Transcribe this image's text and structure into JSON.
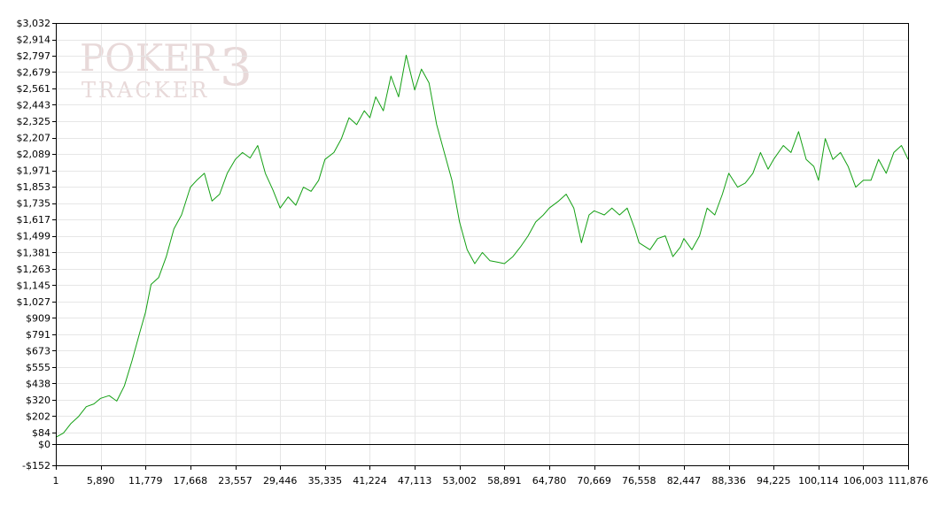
{
  "watermark": {
    "line1": "POKER",
    "line2": "TRACKER",
    "badge": "3"
  },
  "chart_data": {
    "type": "line",
    "title": "",
    "xlabel": "",
    "ylabel": "",
    "grid": true,
    "legend": "none",
    "colors": {
      "line": "#14a014",
      "grid": "#e6e6e6",
      "axis": "#000000",
      "zero": "#000000"
    },
    "xlim": [
      1,
      111876
    ],
    "ylim": [
      -152,
      3032
    ],
    "x_ticks": [
      1,
      5890,
      11779,
      17668,
      23557,
      29446,
      35335,
      41224,
      47113,
      53002,
      58891,
      64780,
      70669,
      76558,
      82447,
      88336,
      94225,
      100114,
      106003,
      111876
    ],
    "x_tick_labels": [
      "1",
      "5,890",
      "11,779",
      "17,668",
      "23,557",
      "29,446",
      "35,335",
      "41,224",
      "47,113",
      "53,002",
      "58,891",
      "64,780",
      "70,669",
      "76,558",
      "82,447",
      "88,336",
      "94,225",
      "100,114",
      "106,003",
      "111,876"
    ],
    "y_ticks": [
      -152,
      0,
      84,
      202,
      320,
      438,
      555,
      673,
      791,
      909,
      1027,
      1145,
      1263,
      1381,
      1499,
      1617,
      1735,
      1853,
      1971,
      2089,
      2207,
      2325,
      2443,
      2561,
      2679,
      2797,
      2914,
      3032
    ],
    "y_tick_labels": [
      "-$152",
      "$0",
      "$84",
      "$202",
      "$320",
      "$438",
      "$555",
      "$673",
      "$791",
      "$909",
      "$1,027",
      "$1,145",
      "$1,263",
      "$1,381",
      "$1,499",
      "$1,617",
      "$1,735",
      "$1,853",
      "$1,971",
      "$2,089",
      "$2,207",
      "$2,325",
      "$2,443",
      "$2,561",
      "$2,679",
      "$2,797",
      "$2,914",
      "$3,032"
    ],
    "series": [
      {
        "x": [
          1,
          1000,
          2000,
          3000,
          4000,
          5000,
          5890,
          7000,
          8000,
          9000,
          10000,
          11000,
          11779,
          12500,
          13500,
          14500,
          15500,
          16500,
          17668,
          18500,
          19500,
          20500,
          21500,
          22500,
          23557,
          24500,
          25500,
          26500,
          27500,
          28500,
          29446,
          30500,
          31500,
          32500,
          33500,
          34500,
          35335,
          36500,
          37500,
          38500,
          39500,
          40500,
          41224,
          42000,
          43000,
          44000,
          45000,
          46000,
          47113,
          48000,
          49000,
          50000,
          51000,
          52000,
          53002,
          54000,
          55000,
          56000,
          57000,
          58000,
          58891,
          60000,
          61000,
          62000,
          63000,
          64000,
          64780,
          66000,
          67000,
          68000,
          69000,
          70000,
          70669,
          72000,
          73000,
          74000,
          75000,
          76000,
          76558,
          78000,
          79000,
          80000,
          81000,
          82000,
          82447,
          83500,
          84500,
          85500,
          86500,
          87500,
          88336,
          89500,
          90500,
          91500,
          92500,
          93500,
          94225,
          95500,
          96500,
          97500,
          98500,
          99500,
          100114,
          101000,
          102000,
          103000,
          104000,
          105000,
          106003,
          107000,
          108000,
          109000,
          110000,
          111000,
          111876
        ],
        "values": [
          50,
          80,
          150,
          200,
          270,
          290,
          330,
          350,
          310,
          420,
          600,
          800,
          950,
          1150,
          1200,
          1350,
          1550,
          1650,
          1850,
          1900,
          1950,
          1750,
          1800,
          1950,
          2050,
          2100,
          2060,
          2150,
          1950,
          1830,
          1700,
          1780,
          1720,
          1850,
          1820,
          1900,
          2050,
          2100,
          2200,
          2350,
          2300,
          2400,
          2350,
          2500,
          2400,
          2650,
          2500,
          2800,
          2550,
          2700,
          2600,
          2300,
          2100,
          1900,
          1600,
          1400,
          1300,
          1380,
          1320,
          1310,
          1300,
          1350,
          1420,
          1500,
          1600,
          1650,
          1700,
          1750,
          1800,
          1700,
          1450,
          1650,
          1680,
          1650,
          1700,
          1650,
          1700,
          1550,
          1450,
          1400,
          1480,
          1500,
          1350,
          1420,
          1480,
          1400,
          1500,
          1700,
          1650,
          1800,
          1950,
          1850,
          1880,
          1950,
          2100,
          1980,
          2050,
          2150,
          2100,
          2250,
          2050,
          2000,
          1900,
          2200,
          2050,
          2100,
          2000,
          1850,
          1900,
          1900,
          2050,
          1950,
          2100,
          2150,
          2050
        ]
      }
    ]
  }
}
